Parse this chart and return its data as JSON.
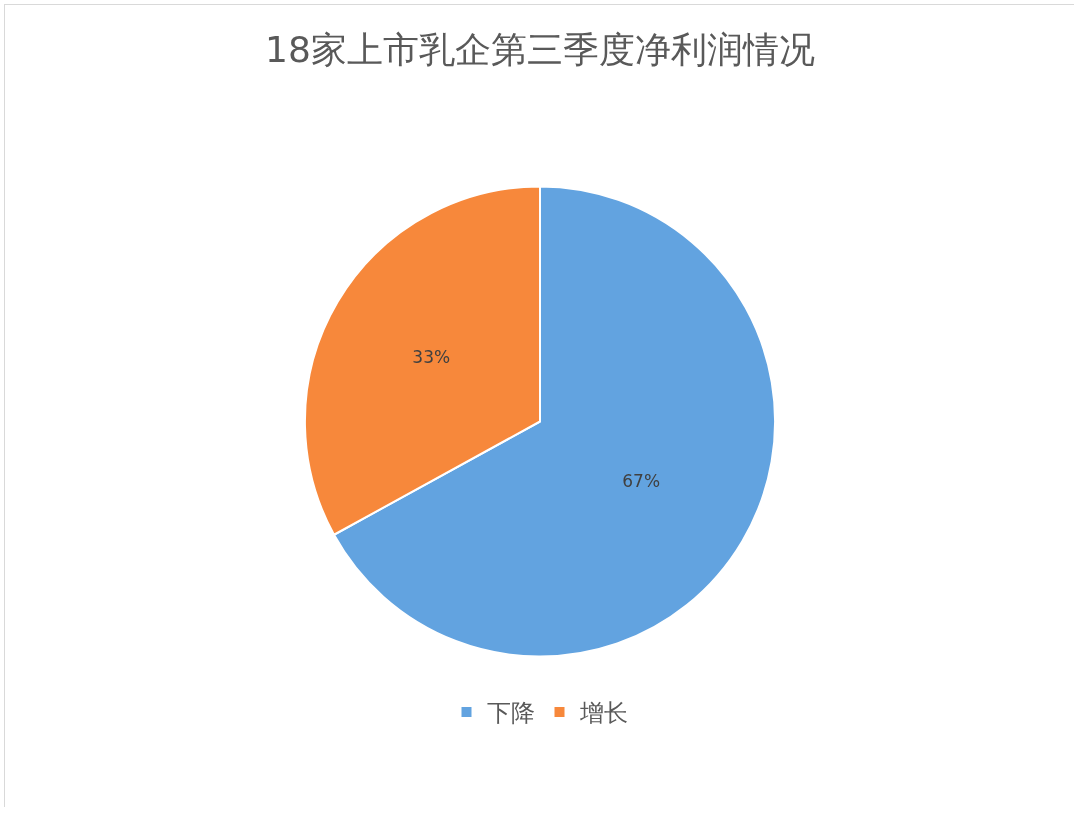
{
  "chart_data": {
    "type": "pie",
    "title": "18家上市乳企第三季度净利润情况",
    "categories": [
      "下降",
      "增长"
    ],
    "values": [
      67,
      33
    ],
    "colors": [
      "#62a3e0",
      "#f7883b"
    ],
    "value_labels": [
      "67%",
      "33%"
    ],
    "legend": "bottom"
  }
}
